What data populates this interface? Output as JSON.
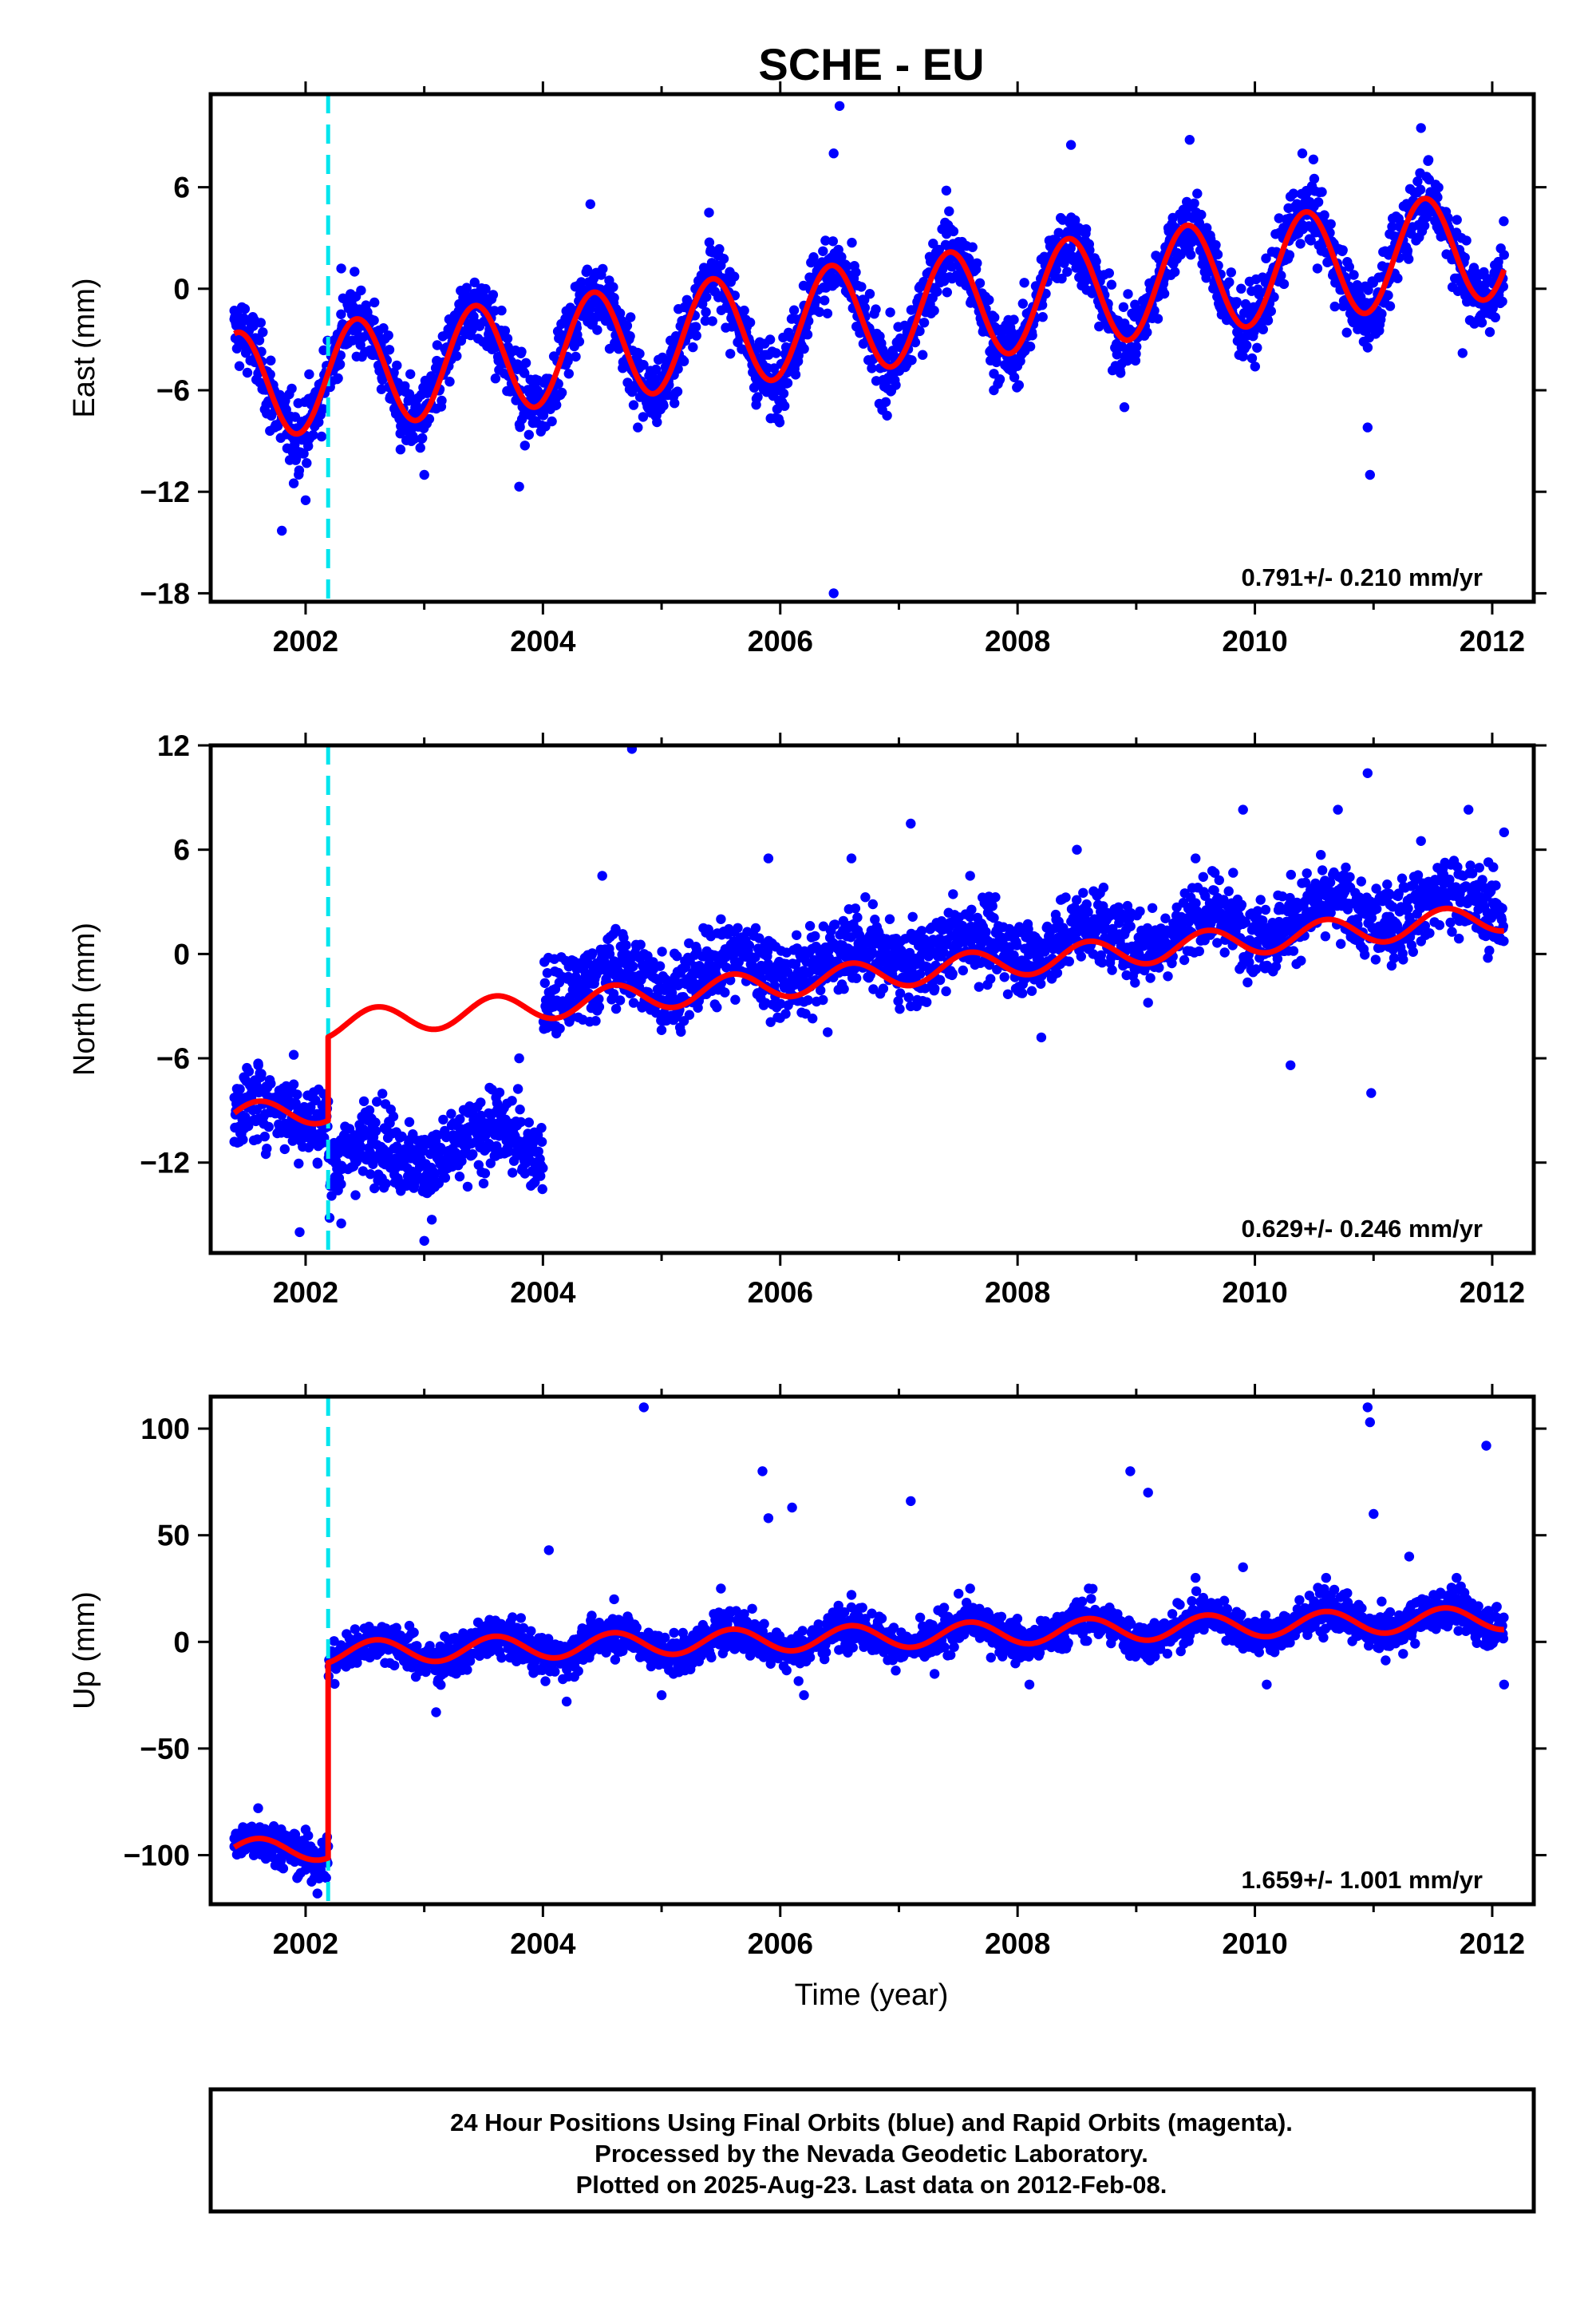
{
  "title": "SCHE - EU",
  "xlabel": "Time (year)",
  "footer": {
    "line1": "24 Hour Positions Using Final Orbits (blue) and Rapid Orbits (magenta).",
    "line2": "Processed by the Nevada Geodetic Laboratory.",
    "line3": "Plotted on 2025-Aug-23. Last data on 2012-Feb-08."
  },
  "colors": {
    "data": "#0000ff",
    "model": "#ff0000",
    "event": "#00e5ee",
    "frame": "#000000"
  },
  "chart_data": [
    {
      "type": "scatter",
      "component": "east",
      "ylabel": "East (mm)",
      "xlim": [
        2001.2,
        2012.35
      ],
      "ylim": [
        -18.5,
        11.5
      ],
      "xticks": [
        2002,
        2004,
        2006,
        2008,
        2010,
        2012
      ],
      "yticks": [
        6,
        0,
        -6,
        -12,
        -18
      ],
      "rate_label": "0.791+/- 0.210 mm/yr",
      "event_line_x": 2002.19,
      "model": {
        "start": 2001.4,
        "end": 2012.1,
        "offset_at_start": -5.8,
        "rate": 0.791,
        "annual_amp": 3.2,
        "peak_phase_year": 0.43,
        "steps": []
      },
      "points": [
        [
          2001.4,
          -1.8
        ],
        [
          2001.6,
          -5.0
        ],
        [
          2001.7,
          -8.4
        ],
        [
          2001.8,
          -14.3
        ],
        [
          2001.9,
          -11.5
        ],
        [
          2002.0,
          -12.5
        ],
        [
          2002.3,
          1.2
        ],
        [
          2002.5,
          -2.2
        ],
        [
          2002.8,
          -9.5
        ],
        [
          2003.0,
          -11.0
        ],
        [
          2003.4,
          -1.5
        ],
        [
          2003.6,
          -5.3
        ],
        [
          2003.8,
          -11.7
        ],
        [
          2004.4,
          5.0
        ],
        [
          2004.8,
          -8.2
        ],
        [
          2005.4,
          4.5
        ],
        [
          2005.8,
          -6.5
        ],
        [
          2006.2,
          -1.0
        ],
        [
          2006.45,
          8.0
        ],
        [
          2006.5,
          10.8
        ],
        [
          2006.45,
          -18.0
        ],
        [
          2006.9,
          -7.5
        ],
        [
          2007.4,
          5.8
        ],
        [
          2007.8,
          -6.0
        ],
        [
          2008.45,
          8.5
        ],
        [
          2008.9,
          -7.0
        ],
        [
          2009.45,
          8.8
        ],
        [
          2009.9,
          -4.0
        ],
        [
          2010.4,
          8.0
        ],
        [
          2010.5,
          6.5
        ],
        [
          2010.95,
          -8.2
        ],
        [
          2010.97,
          -11.0
        ],
        [
          2011.4,
          9.5
        ],
        [
          2011.75,
          -3.8
        ],
        [
          2012.1,
          2.0
        ]
      ]
    },
    {
      "type": "scatter",
      "component": "north",
      "ylabel": "North (mm)",
      "xlim": [
        2001.2,
        2012.35
      ],
      "ylim": [
        -17.2,
        12.0
      ],
      "xticks": [
        2002,
        2004,
        2006,
        2008,
        2010,
        2012
      ],
      "yticks": [
        12,
        6,
        0,
        -6,
        -12
      ],
      "rate_label": "0.629+/- 0.246 mm/yr",
      "event_line_x": 2002.19,
      "model": {
        "start": 2001.4,
        "end": 2012.1,
        "offset_at_start": -9.4,
        "rate": 0.629,
        "annual_amp": 0.8,
        "peak_phase_year": 0.6,
        "steps": [
          [
            2002.19,
            4.8
          ]
        ]
      },
      "points": [
        [
          2001.4,
          -10.8
        ],
        [
          2001.6,
          -6.3
        ],
        [
          2001.9,
          -5.8
        ],
        [
          2001.95,
          -16.0
        ],
        [
          2002.1,
          -12.0
        ],
        [
          2002.3,
          -15.5
        ],
        [
          2002.6,
          -8.5
        ],
        [
          2003.0,
          -16.5
        ],
        [
          2003.3,
          -9.5
        ],
        [
          2003.5,
          -13.2
        ],
        [
          2003.8,
          -6.0
        ],
        [
          2004.1,
          -1.0
        ],
        [
          2004.5,
          4.5
        ],
        [
          2004.75,
          11.8
        ],
        [
          2005.1,
          -3.8
        ],
        [
          2005.5,
          2.0
        ],
        [
          2005.9,
          5.5
        ],
        [
          2006.4,
          -4.5
        ],
        [
          2006.6,
          5.5
        ],
        [
          2007.1,
          7.5
        ],
        [
          2007.6,
          4.5
        ],
        [
          2008.2,
          -4.8
        ],
        [
          2008.5,
          6.0
        ],
        [
          2009.1,
          -2.8
        ],
        [
          2009.5,
          5.5
        ],
        [
          2009.9,
          8.3
        ],
        [
          2010.3,
          -6.4
        ],
        [
          2010.7,
          8.3
        ],
        [
          2010.95,
          10.4
        ],
        [
          2010.98,
          -8.0
        ],
        [
          2011.4,
          6.5
        ],
        [
          2011.8,
          8.3
        ],
        [
          2012.1,
          7.0
        ]
      ]
    },
    {
      "type": "scatter",
      "component": "up",
      "ylabel": "Up (mm)",
      "xlim": [
        2001.2,
        2012.35
      ],
      "ylim": [
        -123,
        115
      ],
      "xticks": [
        2002,
        2004,
        2006,
        2008,
        2010,
        2012
      ],
      "yticks": [
        100,
        50,
        0,
        -50,
        -100
      ],
      "rate_label": "1.659+/- 1.001 mm/yr",
      "event_line_x": 2002.19,
      "model": {
        "start": 2001.4,
        "end": 2012.1,
        "offset_at_start": -98.0,
        "rate": 1.659,
        "annual_amp": 5.5,
        "peak_phase_year": 0.6,
        "steps": [
          [
            2002.19,
            91.5
          ]
        ]
      },
      "points": [
        [
          2001.4,
          -96
        ],
        [
          2001.6,
          -78
        ],
        [
          2001.8,
          -100
        ],
        [
          2002.0,
          -88
        ],
        [
          2002.1,
          -118
        ],
        [
          2002.8,
          3
        ],
        [
          2003.1,
          -33
        ],
        [
          2003.6,
          10
        ],
        [
          2004.05,
          43
        ],
        [
          2004.2,
          -28
        ],
        [
          2004.6,
          20
        ],
        [
          2004.85,
          110
        ],
        [
          2005.0,
          -25
        ],
        [
          2005.5,
          25
        ],
        [
          2005.85,
          80
        ],
        [
          2005.9,
          58
        ],
        [
          2006.1,
          63
        ],
        [
          2006.2,
          -25
        ],
        [
          2006.6,
          22
        ],
        [
          2007.1,
          66
        ],
        [
          2007.3,
          -15
        ],
        [
          2007.6,
          25
        ],
        [
          2008.1,
          -20
        ],
        [
          2008.6,
          25
        ],
        [
          2008.95,
          80
        ],
        [
          2009.1,
          70
        ],
        [
          2009.5,
          30
        ],
        [
          2009.9,
          35
        ],
        [
          2010.1,
          -20
        ],
        [
          2010.6,
          30
        ],
        [
          2010.95,
          110
        ],
        [
          2010.97,
          103
        ],
        [
          2011.0,
          60
        ],
        [
          2011.3,
          40
        ],
        [
          2011.7,
          30
        ],
        [
          2011.95,
          92
        ],
        [
          2012.1,
          -20
        ]
      ]
    }
  ]
}
